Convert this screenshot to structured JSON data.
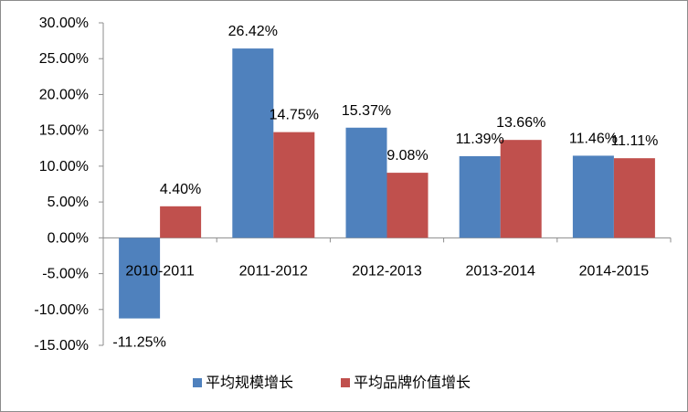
{
  "chart_data": {
    "type": "bar",
    "categories": [
      "2010-2011",
      "2011-2012",
      "2012-2013",
      "2013-2014",
      "2014-2015"
    ],
    "series": [
      {
        "name": "平均规模增长",
        "color": "#4f81bd",
        "values": [
          -11.25,
          26.42,
          15.37,
          11.39,
          11.46
        ],
        "labels": [
          "-11.25%",
          "26.42%",
          "15.37%",
          "11.39%",
          "11.46%"
        ]
      },
      {
        "name": "平均品牌价值增长",
        "color": "#c0504d",
        "values": [
          4.4,
          14.75,
          9.08,
          13.66,
          11.11
        ],
        "labels": [
          "4.40%",
          "14.75%",
          "9.08%",
          "13.66%",
          "11.11%"
        ]
      }
    ],
    "ylim": [
      -15,
      30
    ],
    "yticks": [
      30,
      25,
      20,
      15,
      10,
      5,
      0,
      -5,
      -10,
      -15
    ],
    "ytick_labels": [
      "30.00%",
      "25.00%",
      "20.00%",
      "15.00%",
      "10.00%",
      "5.00%",
      "0.00%",
      "-5.00%",
      "-10.00%",
      "-15.00%"
    ],
    "grid": false,
    "legend_position": "bottom",
    "title": "",
    "xlabel": "",
    "ylabel": ""
  }
}
